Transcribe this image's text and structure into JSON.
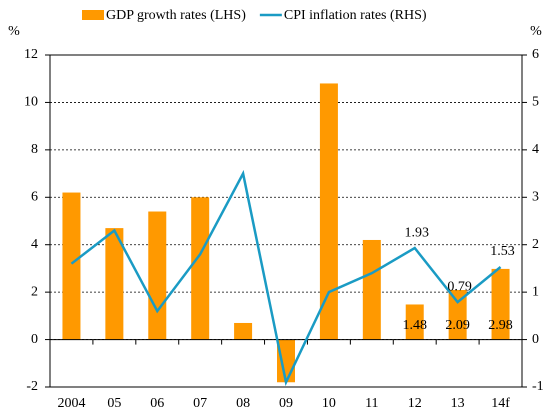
{
  "chart_data": {
    "type": "bar_line",
    "categories": [
      "2004",
      "05",
      "06",
      "07",
      "08",
      "09",
      "10",
      "11",
      "12",
      "13",
      "14f"
    ],
    "series": [
      {
        "name": "GDP growth rates (LHS)",
        "color": "#ff9900",
        "type": "bar",
        "axis": "y",
        "values": [
          6.2,
          4.7,
          5.4,
          6.0,
          0.7,
          -1.8,
          10.8,
          4.2,
          1.48,
          2.09,
          2.98
        ],
        "value_labels": [
          null,
          null,
          null,
          null,
          null,
          null,
          null,
          null,
          "1.48",
          "2.09",
          "2.98"
        ]
      },
      {
        "name": "CPI inflation rates (RHS)",
        "color": "#1a9bc4",
        "type": "line",
        "axis": "y2",
        "values": [
          1.6,
          2.3,
          0.6,
          1.8,
          3.5,
          -0.9,
          1.0,
          1.4,
          1.93,
          0.79,
          1.53
        ],
        "value_labels": [
          null,
          null,
          null,
          null,
          null,
          null,
          null,
          null,
          "1.93",
          "0.79",
          "1.53"
        ]
      }
    ],
    "ylabel": "%",
    "y2label": "%",
    "ylim": [
      -2,
      12
    ],
    "yticks": [
      -2,
      0,
      2,
      4,
      6,
      8,
      10,
      12
    ],
    "y2lim": [
      -1,
      6
    ],
    "y2ticks": [
      -1,
      0,
      1,
      2,
      3,
      4,
      5,
      6
    ],
    "grid": true,
    "legend": "top"
  }
}
